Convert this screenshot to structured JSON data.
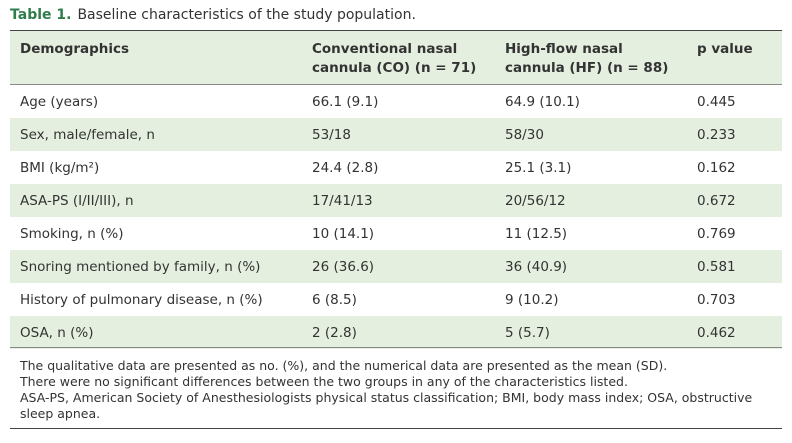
{
  "title": {
    "label": "Table 1.",
    "text": "Baseline characteristics of the study population."
  },
  "table": {
    "header": [
      "Demographics",
      "Conventional nasal cannula (CO) (n = 71)",
      "High-flow nasal cannula (HF) (n = 88)",
      "p value"
    ],
    "rows": [
      [
        "Age (years)",
        "66.1 (9.1)",
        "64.9 (10.1)",
        "0.445"
      ],
      [
        "Sex, male/female, n",
        "53/18",
        "58/30",
        "0.233"
      ],
      [
        "BMI (kg/m²)",
        "24.4 (2.8)",
        "25.1 (3.1)",
        "0.162"
      ],
      [
        "ASA-PS (I/II/III), n",
        "17/41/13",
        "20/56/12",
        "0.672"
      ],
      [
        "Smoking, n (%)",
        "10 (14.1)",
        "11 (12.5)",
        "0.769"
      ],
      [
        "Snoring mentioned by family, n (%)",
        "26 (36.6)",
        "36 (40.9)",
        "0.581"
      ],
      [
        "History of pulmonary disease, n (%)",
        "6 (8.5)",
        "9 (10.2)",
        "0.703"
      ],
      [
        "OSA, n (%)",
        "2 (2.8)",
        "5 (5.7)",
        "0.462"
      ]
    ]
  },
  "footnotes": [
    "The qualitative data are presented as no. (%), and the numerical data are presented as the mean (SD).",
    "There were no significant differences between the two groups in any of the characteristics listed.",
    "ASA-PS, American Society of Anesthesiologists physical status classification; BMI, body mass index; OSA, obstructive sleep apnea."
  ]
}
